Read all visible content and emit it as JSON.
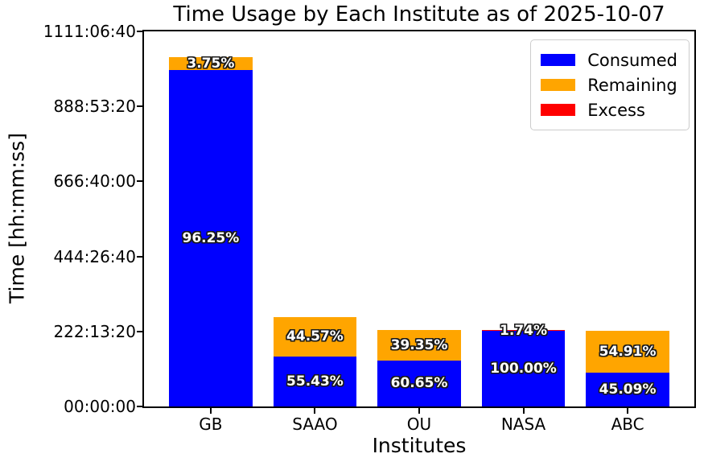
{
  "chart_data": {
    "type": "bar",
    "stacked": true,
    "title": "Time Usage by Each Institute as of 2025-10-07",
    "xlabel": "Institutes",
    "ylabel": "Time [hh:mm:ss]",
    "categories": [
      "GB",
      "SAAO",
      "OU",
      "NASA",
      "ABC"
    ],
    "grid": false,
    "legend_position": "upper right",
    "y_axis": {
      "unit": "hours",
      "min": 0,
      "max": 1111.1111,
      "tick_values_hours": [
        0,
        222.2222,
        444.4444,
        666.6667,
        888.8889,
        1111.1111
      ],
      "tick_labels": [
        "00:00:00",
        "222:13:20",
        "444:26:40",
        "666:40:00",
        "888:53:20",
        "1111:06:40"
      ]
    },
    "series": [
      {
        "name": "Consumed",
        "color": "#0000ff",
        "hours_est": [
          996.3,
          147.4,
          136.8,
          223.2,
          100.6
        ],
        "percent_labels": [
          "96.25%",
          "55.43%",
          "60.65%",
          "100.00%",
          "45.09%"
        ]
      },
      {
        "name": "Remaining",
        "color": "#ffa500",
        "hours_est": [
          38.8,
          118.5,
          88.7,
          0,
          122.6
        ],
        "percent_labels": [
          "3.75%",
          "44.57%",
          "39.35%",
          "",
          "54.91%"
        ]
      },
      {
        "name": "Excess",
        "color": "#ff0000",
        "hours_est": [
          0,
          0,
          0,
          3.9,
          0
        ],
        "percent_labels": [
          "",
          "",
          "",
          "1.74%",
          ""
        ]
      }
    ]
  }
}
